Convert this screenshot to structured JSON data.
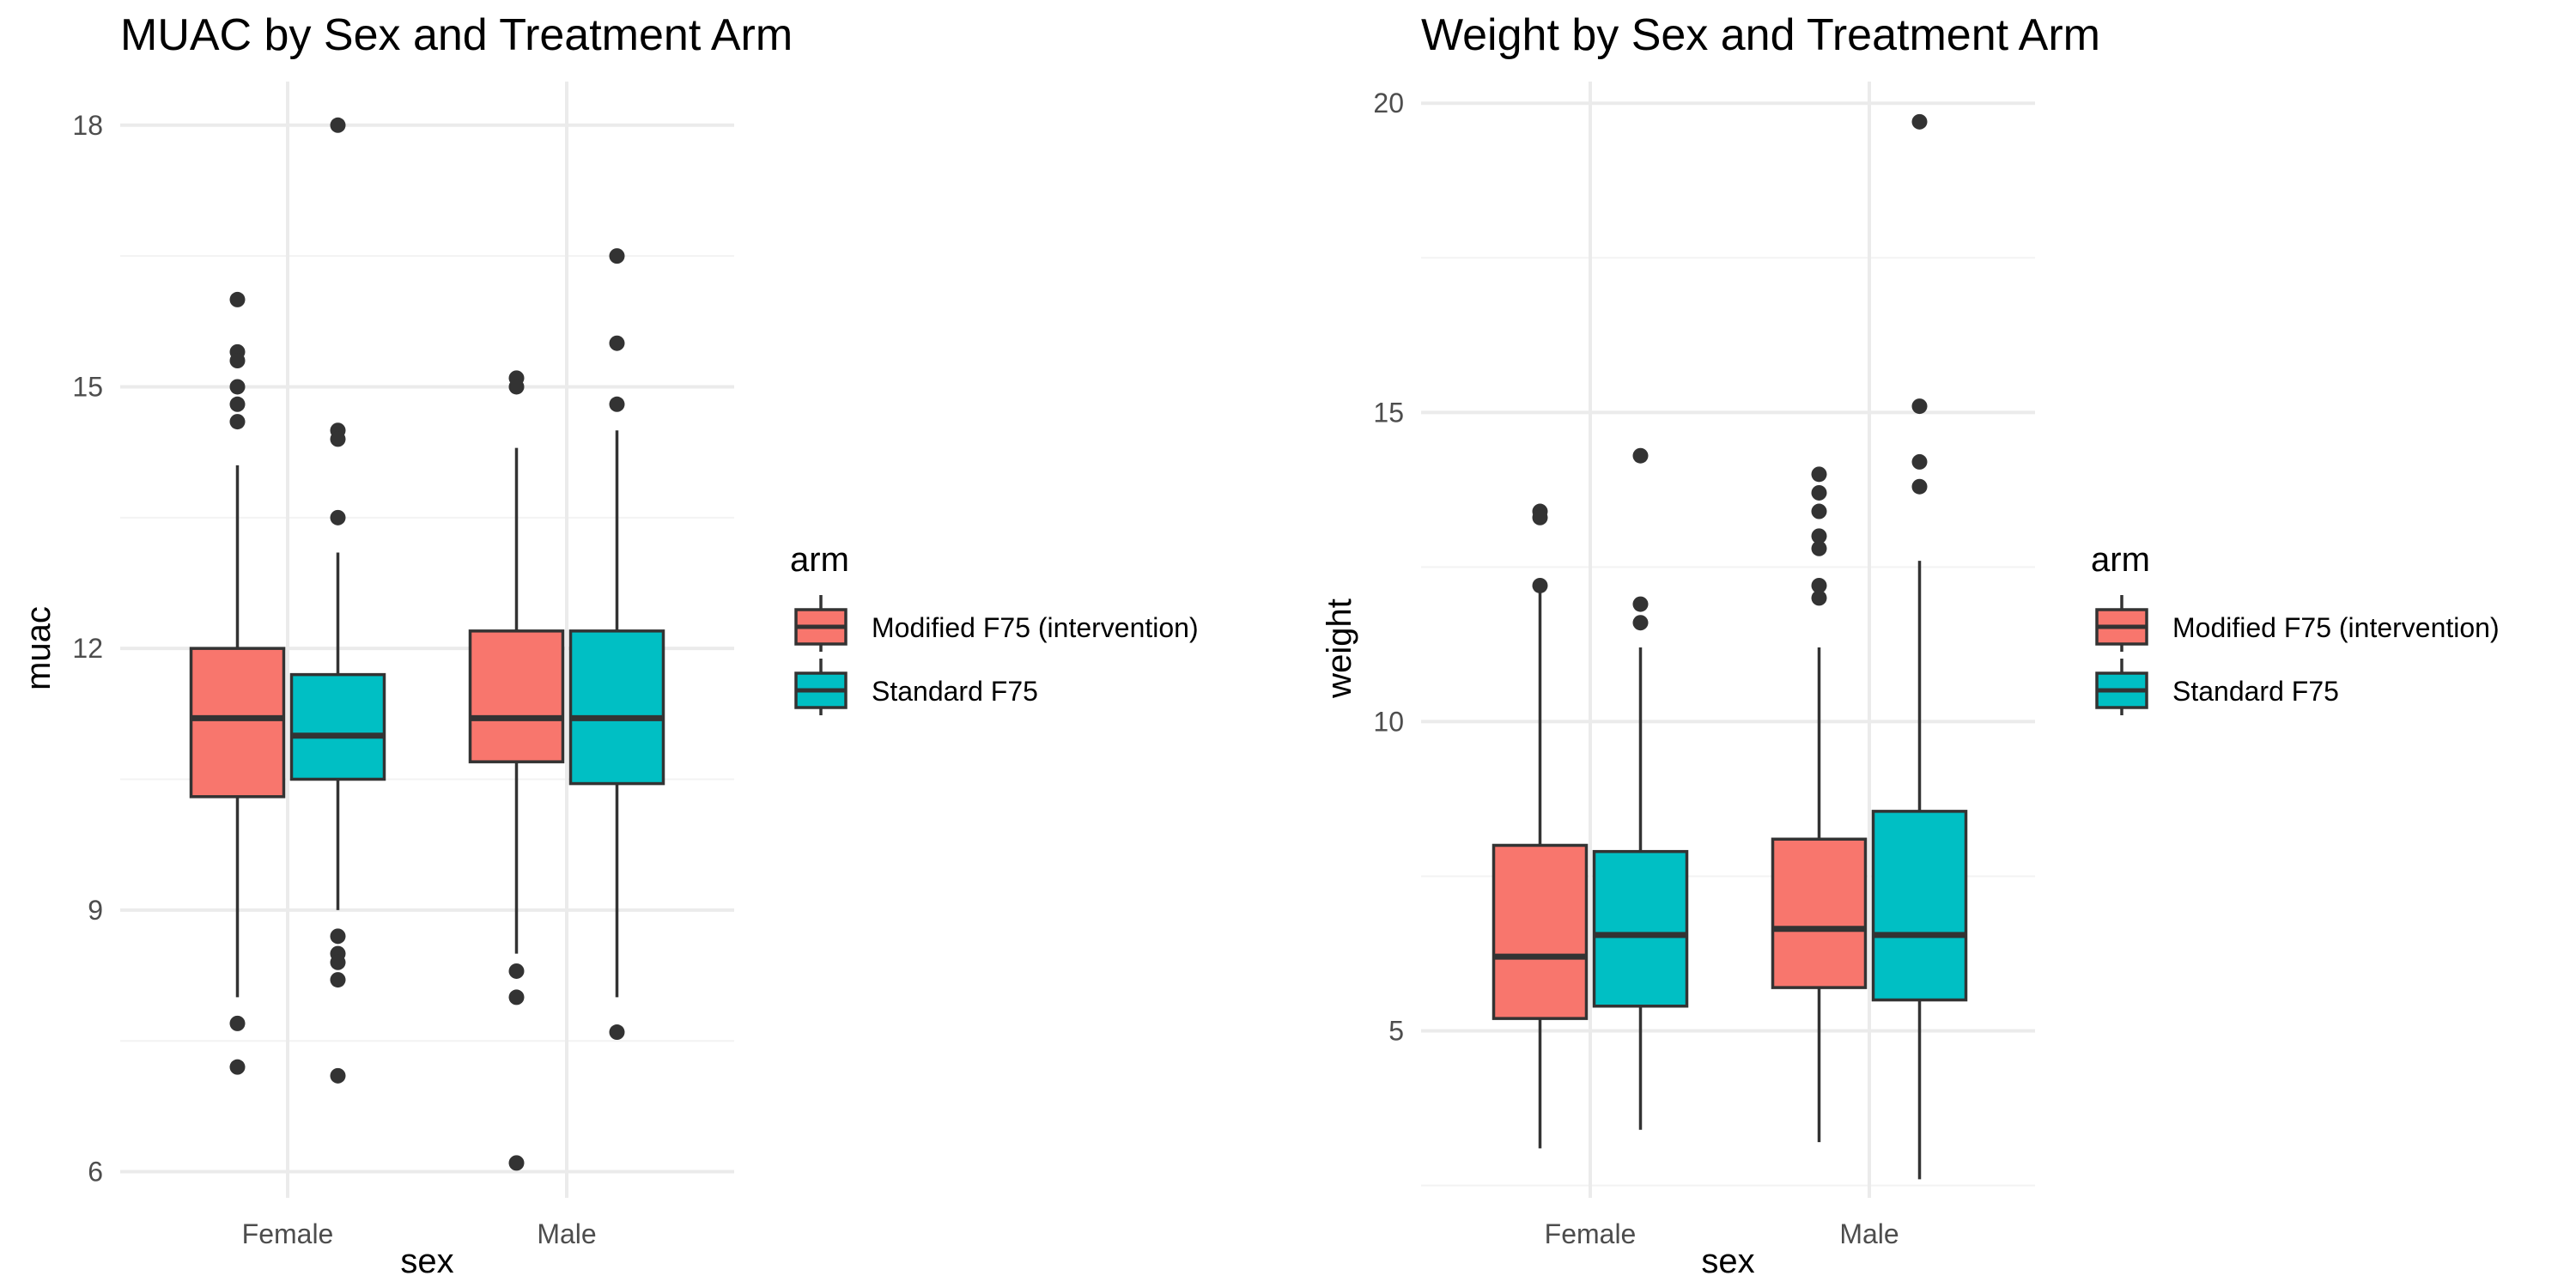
{
  "chart_data": [
    {
      "type": "boxplot",
      "title": "MUAC by Sex and Treatment Arm",
      "xlabel": "sex",
      "ylabel": "muac",
      "categories": [
        "Female",
        "Male"
      ],
      "ylim": [
        5.7,
        18.5
      ],
      "yticks": [
        6,
        9,
        12,
        15,
        18
      ],
      "grid": true,
      "legend": {
        "title": "arm",
        "placement": "right"
      },
      "series": [
        {
          "name": "Modified F75 (intervention)",
          "color": "#F8766D",
          "boxes": [
            {
              "category": "Female",
              "lower_whisker": 8.0,
              "q1": 10.3,
              "median": 11.2,
              "q3": 12.0,
              "upper_whisker": 14.1,
              "outliers": [
                16.0,
                15.4,
                15.3,
                15.0,
                14.8,
                14.6,
                7.7,
                7.2
              ]
            },
            {
              "category": "Male",
              "lower_whisker": 8.5,
              "q1": 10.7,
              "median": 11.2,
              "q3": 12.2,
              "upper_whisker": 14.3,
              "outliers": [
                15.1,
                15.0,
                8.3,
                8.0,
                6.1
              ]
            }
          ]
        },
        {
          "name": "Standard F75",
          "color": "#00BFC4",
          "boxes": [
            {
              "category": "Female",
              "lower_whisker": 9.0,
              "q1": 10.5,
              "median": 11.0,
              "q3": 11.7,
              "upper_whisker": 13.1,
              "outliers": [
                18.0,
                14.5,
                14.4,
                13.5,
                8.7,
                8.5,
                8.4,
                8.2,
                7.1
              ]
            },
            {
              "category": "Male",
              "lower_whisker": 8.0,
              "q1": 10.45,
              "median": 11.2,
              "q3": 12.2,
              "upper_whisker": 14.5,
              "outliers": [
                16.5,
                15.5,
                14.8,
                7.6
              ]
            }
          ]
        }
      ]
    },
    {
      "type": "boxplot",
      "title": "Weight by Sex and Treatment Arm",
      "xlabel": "sex",
      "ylabel": "weight",
      "categories": [
        "Female",
        "Male"
      ],
      "ylim": [
        2.3,
        20.35
      ],
      "yticks": [
        5,
        10,
        15,
        20
      ],
      "grid": true,
      "legend": {
        "title": "arm",
        "placement": "right"
      },
      "series": [
        {
          "name": "Modified F75 (intervention)",
          "color": "#F8766D",
          "boxes": [
            {
              "category": "Female",
              "lower_whisker": 3.1,
              "q1": 5.2,
              "median": 6.2,
              "q3": 8.0,
              "upper_whisker": 12.2,
              "outliers": [
                13.4,
                13.3,
                12.2
              ]
            },
            {
              "category": "Male",
              "lower_whisker": 3.2,
              "q1": 5.7,
              "median": 6.65,
              "q3": 8.1,
              "upper_whisker": 11.2,
              "outliers": [
                14.0,
                13.7,
                13.4,
                13.0,
                12.8,
                12.2,
                12.0
              ]
            }
          ]
        },
        {
          "name": "Standard F75",
          "color": "#00BFC4",
          "boxes": [
            {
              "category": "Female",
              "lower_whisker": 3.4,
              "q1": 5.4,
              "median": 6.55,
              "q3": 7.9,
              "upper_whisker": 11.2,
              "outliers": [
                14.3,
                11.9,
                11.6
              ]
            },
            {
              "category": "Male",
              "lower_whisker": 2.6,
              "q1": 5.5,
              "median": 6.55,
              "q3": 8.55,
              "upper_whisker": 12.6,
              "outliers": [
                19.7,
                15.1,
                14.2,
                13.8
              ]
            }
          ]
        }
      ]
    }
  ]
}
